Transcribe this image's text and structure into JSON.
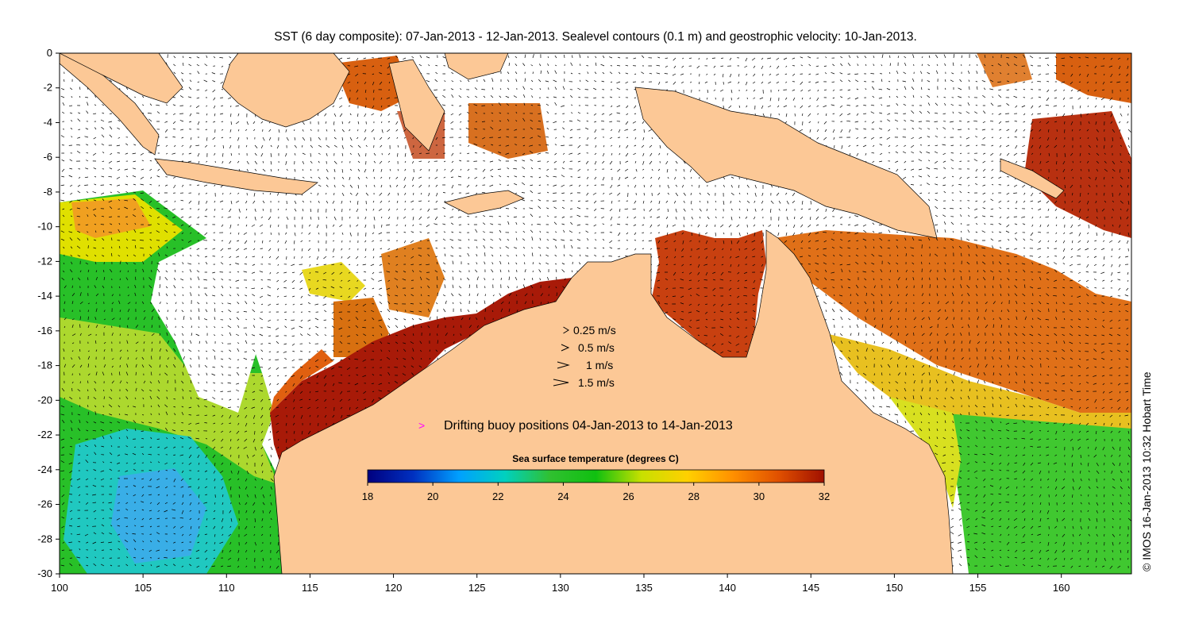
{
  "title": "SST (6 day composite): 07-Jan-2013 - 12-Jan-2013. Sealevel contours (0.1 m) and geostrophic velocity: 10-Jan-2013.",
  "copyright": "© IMOS 16-Jan-2013 10:32 Hobart Time",
  "axes": {
    "x_ticks": [
      "100",
      "105",
      "110",
      "115",
      "120",
      "125",
      "130",
      "135",
      "140",
      "145",
      "150",
      "155",
      "160"
    ],
    "y_ticks": [
      "0",
      "-2",
      "-4",
      "-6",
      "-8",
      "-10",
      "-12",
      "-14",
      "-16",
      "-18",
      "-20",
      "-22",
      "-24",
      "-26",
      "-28",
      "-30"
    ],
    "x_range": [
      100,
      164.2
    ],
    "y_range": [
      -30,
      0
    ]
  },
  "velocity_legend": [
    {
      "label": "0.25 m/s",
      "speed": 0.25
    },
    {
      "label": "0.5 m/s",
      "speed": 0.5
    },
    {
      "label": "1 m/s",
      "speed": 1
    },
    {
      "label": "1.5 m/s",
      "speed": 1.5
    }
  ],
  "buoy_legend": {
    "label": "Drifting buoy positions 04-Jan-2013 to 14-Jan-2013",
    "color": "#ff00ff"
  },
  "colorbar": {
    "title": "Sea surface temperature (degrees C)",
    "ticks": [
      "18",
      "20",
      "22",
      "24",
      "26",
      "28",
      "30",
      "32"
    ],
    "range": [
      18,
      32
    ],
    "stops": [
      "#00007f",
      "#0030c0",
      "#00a0ff",
      "#00d0c0",
      "#30c030",
      "#10c010",
      "#c8e000",
      "#ffd000",
      "#ff9000",
      "#e05000",
      "#a01000"
    ]
  },
  "colors": {
    "land": "#fcc896",
    "ocean_no_data": "#ffffff"
  }
}
